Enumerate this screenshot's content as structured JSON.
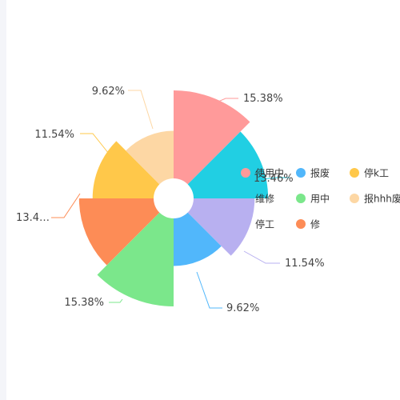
{
  "chart_data": {
    "type": "pie",
    "variant": "rose",
    "legend_position": "right",
    "slices": [
      {
        "name": "使用中",
        "value": 15.38,
        "label": "15.38%",
        "color": "#ff9a9a"
      },
      {
        "name": "维修",
        "value": 13.46,
        "label": "13.46%",
        "color": "#21cfe3"
      },
      {
        "name": "停工",
        "value": 11.54,
        "label": "11.54%",
        "color": "#b8b0f0"
      },
      {
        "name": "报废",
        "value": 9.62,
        "label": "9.62%",
        "color": "#51b7fb"
      },
      {
        "name": "用中",
        "value": 15.38,
        "label": "15.38%",
        "color": "#7be78b"
      },
      {
        "name": "修",
        "value": 13.46,
        "label": "13.4…",
        "color": "#fd8c56"
      },
      {
        "name": "停k工",
        "value": 11.54,
        "label": "11.54%",
        "color": "#ffc84a"
      },
      {
        "name": "报hhh废",
        "value": 9.62,
        "label": "9.62%",
        "color": "#fdd7a4"
      }
    ],
    "legend": [
      {
        "text": "使用中",
        "color": "#ff9a9a",
        "marker": true
      },
      {
        "text": "报废",
        "color": "#51b7fb",
        "marker": true
      },
      {
        "text": "停k工",
        "color": "#ffc84a",
        "marker": true
      },
      {
        "text": "维修",
        "color": "#21cfe3",
        "marker": false
      },
      {
        "text": "用中",
        "color": "#7be78b",
        "marker": true
      },
      {
        "text": "报hhh废",
        "color": "#fdd7a4",
        "marker": true
      },
      {
        "text": "停工",
        "color": "#b8b0f0",
        "marker": false
      },
      {
        "text": "修",
        "color": "#fd8c56",
        "marker": true
      }
    ]
  }
}
